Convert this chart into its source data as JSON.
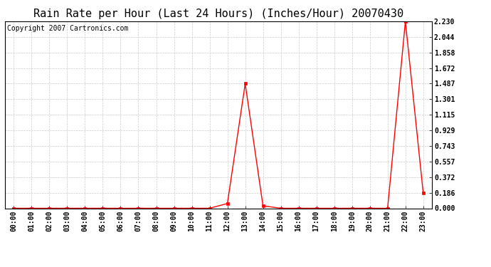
{
  "title": "Rain Rate per Hour (Last 24 Hours) (Inches/Hour) 20070430",
  "copyright_text": "Copyright 2007 Cartronics.com",
  "background_color": "#ffffff",
  "plot_bg_color": "#ffffff",
  "grid_color": "#cccccc",
  "line_color": "#ff0000",
  "marker_color": "#ff0000",
  "hours": [
    0,
    1,
    2,
    3,
    4,
    5,
    6,
    7,
    8,
    9,
    10,
    11,
    12,
    13,
    14,
    15,
    16,
    17,
    18,
    19,
    20,
    21,
    22,
    23
  ],
  "values": [
    0.0,
    0.0,
    0.0,
    0.0,
    0.0,
    0.0,
    0.0,
    0.0,
    0.0,
    0.0,
    0.0,
    0.0,
    0.057,
    1.487,
    0.029,
    0.0,
    0.0,
    0.0,
    0.0,
    0.0,
    0.0,
    0.0,
    2.23,
    0.186
  ],
  "ylim": [
    0.0,
    2.23
  ],
  "yticks": [
    0.0,
    0.186,
    0.372,
    0.557,
    0.743,
    0.929,
    1.115,
    1.301,
    1.487,
    1.672,
    1.858,
    2.044,
    2.23
  ],
  "xlabel_hours": [
    "00:00",
    "01:00",
    "02:00",
    "03:00",
    "04:00",
    "05:00",
    "06:00",
    "07:00",
    "08:00",
    "09:00",
    "10:00",
    "11:00",
    "12:00",
    "13:00",
    "14:00",
    "15:00",
    "16:00",
    "17:00",
    "18:00",
    "19:00",
    "20:00",
    "21:00",
    "22:00",
    "23:00"
  ],
  "title_fontsize": 11,
  "copyright_fontsize": 7,
  "tick_fontsize": 7,
  "marker_size": 2.5,
  "line_width": 1.0
}
